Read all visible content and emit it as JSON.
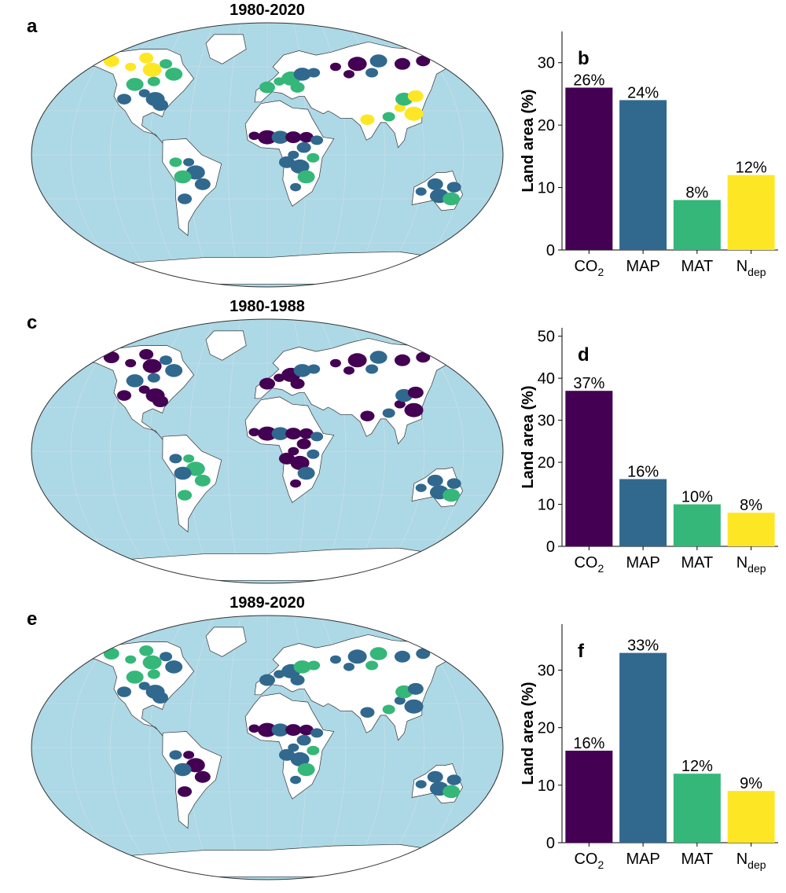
{
  "colors": {
    "co2": "#440154",
    "map": "#31688e",
    "mat": "#35b779",
    "ndep": "#fde725",
    "ocean": "#add8e6",
    "land_nodata": "#ffffff",
    "grid": "#c8dfe8"
  },
  "icons": [
    "world-map-robinson",
    "bar-chart"
  ],
  "panels": [
    {
      "map_letter": "a",
      "bar_letter": "b",
      "period": "1980-2020",
      "dominance": {
        "north_america": "map",
        "canada": "ndep",
        "europe": "mat",
        "siberia": "co2",
        "east_asia": "ndep",
        "sahel": "co2",
        "africa": "map",
        "south_america": "map",
        "australia": "map"
      }
    },
    {
      "map_letter": "c",
      "bar_letter": "d",
      "period": "1980-1988",
      "dominance": {
        "north_america": "co2",
        "canada": "co2",
        "europe": "co2",
        "siberia": "co2",
        "east_asia": "co2",
        "sahel": "co2",
        "africa": "co2",
        "south_america": "mat",
        "australia": "map"
      }
    },
    {
      "map_letter": "e",
      "bar_letter": "f",
      "period": "1989-2020",
      "dominance": {
        "north_america": "map",
        "canada": "mat",
        "europe": "map",
        "siberia": "map",
        "east_asia": "map",
        "sahel": "co2",
        "africa": "map",
        "south_america": "co2",
        "australia": "map"
      }
    }
  ],
  "chart_data": [
    {
      "type": "bar",
      "panel": "b",
      "categories": [
        "CO2",
        "MAP",
        "MAT",
        "Ndep"
      ],
      "category_labels": [
        {
          "main": "CO",
          "sub": "2"
        },
        {
          "main": "MAP",
          "sub": ""
        },
        {
          "main": "MAT",
          "sub": ""
        },
        {
          "main": "N",
          "sub": "dep"
        }
      ],
      "values": [
        26,
        24,
        8,
        12
      ],
      "data_labels": [
        "26%",
        "24%",
        "8%",
        "12%"
      ],
      "ylabel": "Land area (%)",
      "ylim": [
        0,
        35
      ],
      "yticks": [
        0,
        10,
        20,
        30
      ],
      "colors": [
        "#440154",
        "#31688e",
        "#35b779",
        "#fde725"
      ],
      "grid": false
    },
    {
      "type": "bar",
      "panel": "d",
      "categories": [
        "CO2",
        "MAP",
        "MAT",
        "Ndep"
      ],
      "category_labels": [
        {
          "main": "CO",
          "sub": "2"
        },
        {
          "main": "MAP",
          "sub": ""
        },
        {
          "main": "MAT",
          "sub": ""
        },
        {
          "main": "N",
          "sub": "dep"
        }
      ],
      "values": [
        37,
        16,
        10,
        8
      ],
      "data_labels": [
        "37%",
        "16%",
        "10%",
        "8%"
      ],
      "ylabel": "Land area (%)",
      "ylim": [
        0,
        52
      ],
      "yticks": [
        0,
        10,
        20,
        30,
        40,
        50
      ],
      "colors": [
        "#440154",
        "#31688e",
        "#35b779",
        "#fde725"
      ],
      "grid": false
    },
    {
      "type": "bar",
      "panel": "f",
      "categories": [
        "CO2",
        "MAP",
        "MAT",
        "Ndep"
      ],
      "category_labels": [
        {
          "main": "CO",
          "sub": "2"
        },
        {
          "main": "MAP",
          "sub": ""
        },
        {
          "main": "MAT",
          "sub": ""
        },
        {
          "main": "N",
          "sub": "dep"
        }
      ],
      "values": [
        16,
        33,
        12,
        9
      ],
      "data_labels": [
        "16%",
        "33%",
        "12%",
        "9%"
      ],
      "ylabel": "Land area (%)",
      "ylim": [
        0,
        38
      ],
      "yticks": [
        0,
        10,
        20,
        30
      ],
      "colors": [
        "#440154",
        "#31688e",
        "#35b779",
        "#fde725"
      ],
      "grid": false
    }
  ]
}
